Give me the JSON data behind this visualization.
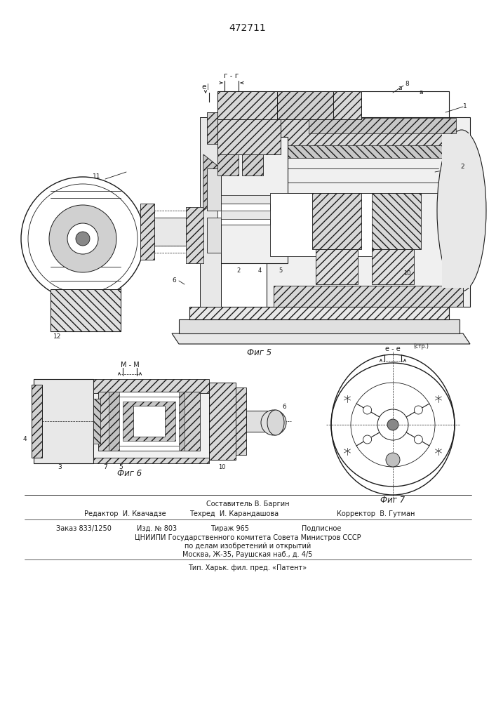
{
  "patent_number": "472711",
  "background_color": "#ffffff",
  "line_color": "#1a1a1a",
  "fig_width": 7.07,
  "fig_height": 10.0,
  "dpi": 100,
  "footer_lines": [
    "Составитель В. Баргин",
    "Редактор  И. Квачадзе",
    "Техред  И. Карандашова",
    "Корректор  В. Гутман",
    "Заказ 833/1250",
    "Изд. № 803",
    "Тираж 965",
    "Подписное",
    "ЦНИИПИ Государственного комитета Совета Министров СССР",
    "по делам изобретений и открытий",
    "Москва, Ж-35, Раушская наб., д. 4/5",
    "Тип. Харьк. фил. пред. «Патент»"
  ],
  "fig5_caption": "Фиг 5",
  "fig6_caption": "Фиг 6",
  "fig7_caption": "Фиг 7",
  "label_gg": "г - г",
  "label_ee": "е",
  "label_ee2": "е - е",
  "label_mm": "М - М"
}
